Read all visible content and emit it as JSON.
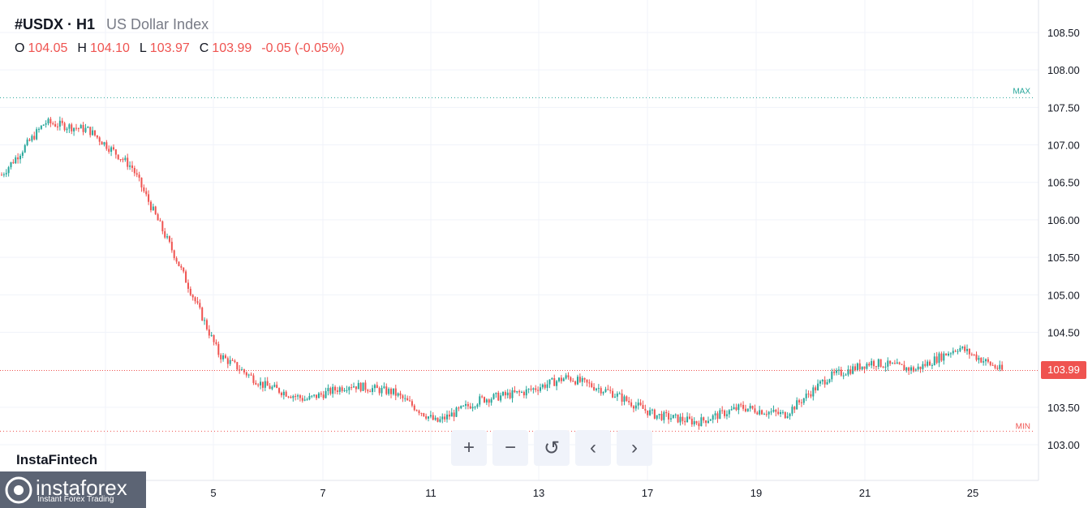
{
  "header": {
    "symbol": "#USDX · H1",
    "description": "US Dollar Index"
  },
  "ohlc": {
    "o_label": "O",
    "o_value": "104.05",
    "h_label": "H",
    "h_value": "104.10",
    "l_label": "L",
    "l_value": "103.97",
    "c_label": "C",
    "c_value": "103.99",
    "change": "-0.05 (-0.05%)"
  },
  "markers": {
    "max_label": "MAX",
    "min_label": "MIN",
    "current_price": "103.99"
  },
  "toolbar": {
    "zoom_in": "+",
    "zoom_out": "−",
    "reset": "↺",
    "left": "‹",
    "right": "›"
  },
  "brand": {
    "watermark": "InstaFintech",
    "logo_name": "instaforex",
    "logo_tagline": "Instant Forex Trading"
  },
  "colors": {
    "up": "#26a69a",
    "down": "#ef5350",
    "grid": "#f0f3fa",
    "max_line": "#26a69a",
    "min_line": "#ef5350"
  },
  "chart_data": {
    "type": "line",
    "title": "#USDX · H1",
    "subtitle": "US Dollar Index",
    "series": [
      {
        "x": [
          "2",
          "3",
          "4",
          "5",
          "6",
          "7",
          "8",
          "9",
          "10",
          "11",
          "12",
          "13",
          "14",
          "15",
          "16",
          "17",
          "18",
          "19",
          "20",
          "21",
          "22",
          "23",
          "24",
          "25"
        ],
        "values": [
          106.6,
          107.3,
          107.2,
          106.7,
          105.5,
          104.2,
          103.8,
          103.6,
          103.8,
          103.7,
          103.3,
          103.6,
          103.7,
          103.9,
          103.7,
          103.4,
          103.3,
          103.5,
          103.4,
          103.9,
          104.1,
          104.0,
          104.3,
          103.99
        ]
      }
    ],
    "ylim": [
      102.75,
      108.75
    ],
    "y_ticks": [
      "108.50",
      "108.00",
      "107.50",
      "107.00",
      "106.50",
      "106.00",
      "105.50",
      "105.00",
      "104.50",
      "103.50",
      "103.00"
    ],
    "x_ticks": [
      "5",
      "7",
      "11",
      "13",
      "17",
      "19",
      "21",
      "25"
    ],
    "max_value": 107.63,
    "min_value": 103.18,
    "last_value": 103.99,
    "grid": true
  }
}
